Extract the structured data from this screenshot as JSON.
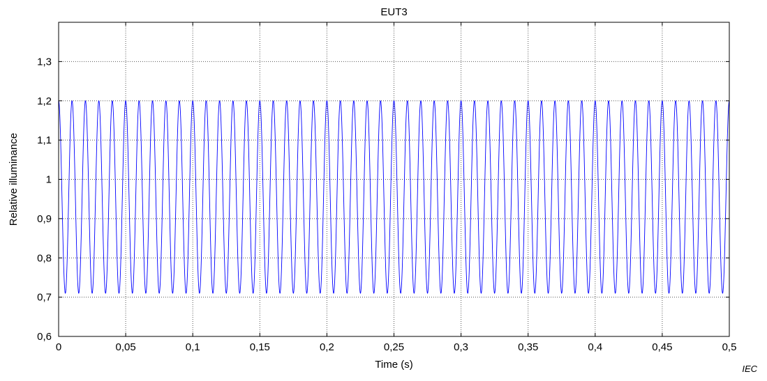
{
  "chart_data": {
    "type": "line",
    "title": "EUT3",
    "xlabel": "Time  (s)",
    "ylabel": "Relative illuminance",
    "xlim": [
      0,
      0.5
    ],
    "ylim": [
      0.6,
      1.4
    ],
    "xticks": [
      0,
      0.05,
      0.1,
      0.15,
      0.2,
      0.25,
      0.3,
      0.35,
      0.4,
      0.45,
      0.5
    ],
    "xtick_labels": [
      "0",
      "0,05",
      "0,1",
      "0,15",
      "0,2",
      "0,25",
      "0,3",
      "0,35",
      "0,4",
      "0,45",
      "0,5"
    ],
    "yticks": [
      0.6,
      0.7,
      0.8,
      0.9,
      1.0,
      1.1,
      1.2,
      1.3
    ],
    "ytick_labels": [
      "0,6",
      "0,7",
      "0,8",
      "0,9",
      "1",
      "1,1",
      "1,2",
      "1,3"
    ],
    "grid": true,
    "series": [
      {
        "color": "#0000ff",
        "waveform": "sinusoid",
        "frequency_hz": 100,
        "mean": 0.955,
        "amplitude": 0.245,
        "phase_deg": 90,
        "t_start": 0,
        "t_end": 0.5
      }
    ]
  },
  "watermark": "IEC"
}
